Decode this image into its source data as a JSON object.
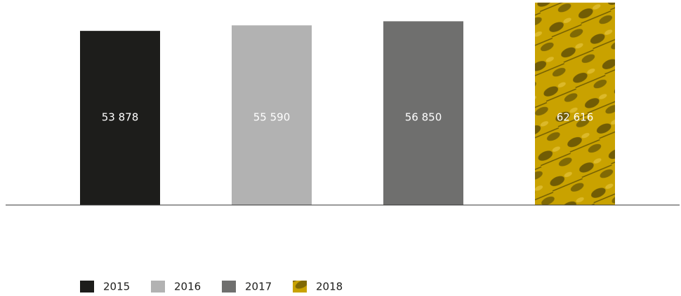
{
  "chart_data": {
    "type": "bar",
    "categories": [
      "2015",
      "2016",
      "2017",
      "2018"
    ],
    "values": [
      53878,
      55590,
      56850,
      62616
    ],
    "value_labels": [
      "53 878",
      "55 590",
      "56 850",
      "62 616"
    ],
    "colors": [
      "#1d1d1b",
      "#b2b2b2",
      "#6f6f6e",
      "#c9a200"
    ],
    "ylim": [
      0,
      63000
    ],
    "legend": "bottom-left"
  }
}
